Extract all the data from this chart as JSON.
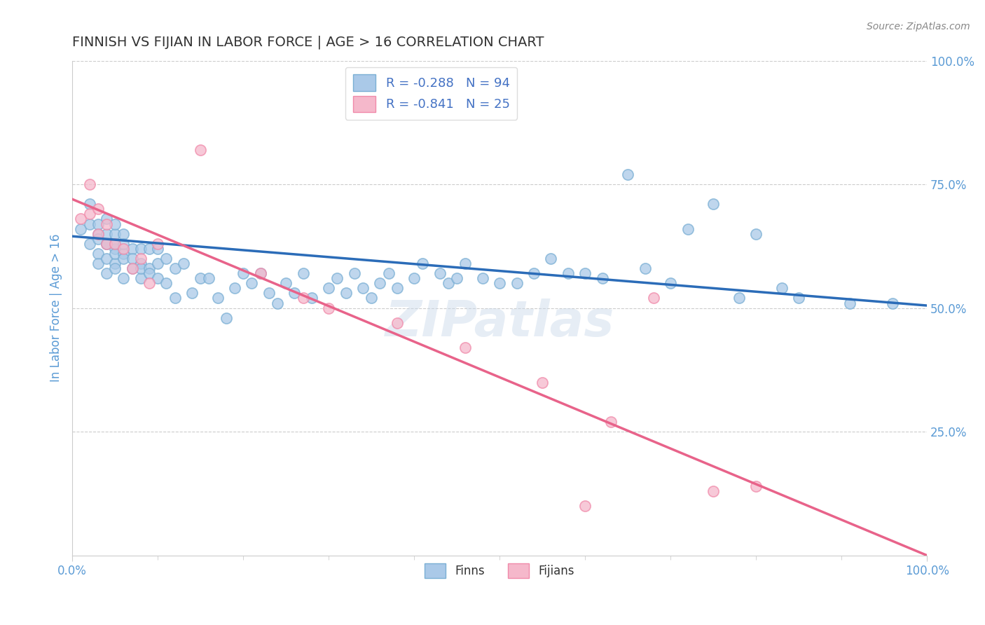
{
  "title": "FINNISH VS FIJIAN IN LABOR FORCE | AGE > 16 CORRELATION CHART",
  "source_text": "Source: ZipAtlas.com",
  "ylabel": "In Labor Force | Age > 16",
  "xlim": [
    0.0,
    1.0
  ],
  "ylim": [
    0.0,
    1.0
  ],
  "x_ticks": [
    0.0,
    1.0
  ],
  "x_tick_labels": [
    "0.0%",
    "100.0%"
  ],
  "y_ticks": [
    0.25,
    0.5,
    0.75,
    1.0
  ],
  "y_tick_labels": [
    "25.0%",
    "50.0%",
    "75.0%",
    "100.0%"
  ],
  "watermark": "ZIPatlas",
  "finn_color": "#aac9e8",
  "fijian_color": "#f5b8cb",
  "finn_edge_color": "#7aafd4",
  "fijian_edge_color": "#f08aaa",
  "finn_line_color": "#2b6cb8",
  "fijian_line_color": "#e8638a",
  "legend_finn_label": "R = -0.288   N = 94",
  "legend_fijian_label": "R = -0.841   N = 25",
  "finns_label": "Finns",
  "fijians_label": "Fijians",
  "finn_scatter_x": [
    0.01,
    0.02,
    0.02,
    0.02,
    0.03,
    0.03,
    0.03,
    0.03,
    0.03,
    0.04,
    0.04,
    0.04,
    0.04,
    0.04,
    0.04,
    0.05,
    0.05,
    0.05,
    0.05,
    0.05,
    0.05,
    0.05,
    0.06,
    0.06,
    0.06,
    0.06,
    0.06,
    0.07,
    0.07,
    0.07,
    0.08,
    0.08,
    0.08,
    0.08,
    0.09,
    0.09,
    0.09,
    0.1,
    0.1,
    0.1,
    0.11,
    0.11,
    0.12,
    0.12,
    0.13,
    0.14,
    0.15,
    0.16,
    0.17,
    0.18,
    0.19,
    0.2,
    0.21,
    0.22,
    0.23,
    0.24,
    0.25,
    0.26,
    0.27,
    0.28,
    0.3,
    0.31,
    0.32,
    0.33,
    0.34,
    0.35,
    0.36,
    0.37,
    0.38,
    0.4,
    0.41,
    0.43,
    0.44,
    0.45,
    0.46,
    0.48,
    0.5,
    0.52,
    0.54,
    0.56,
    0.58,
    0.6,
    0.62,
    0.65,
    0.67,
    0.7,
    0.72,
    0.75,
    0.78,
    0.8,
    0.83,
    0.85,
    0.91,
    0.96
  ],
  "finn_scatter_y": [
    0.66,
    0.67,
    0.63,
    0.71,
    0.65,
    0.67,
    0.64,
    0.61,
    0.59,
    0.65,
    0.63,
    0.68,
    0.6,
    0.57,
    0.63,
    0.65,
    0.62,
    0.59,
    0.67,
    0.63,
    0.58,
    0.61,
    0.65,
    0.61,
    0.63,
    0.56,
    0.6,
    0.62,
    0.58,
    0.6,
    0.59,
    0.62,
    0.56,
    0.58,
    0.58,
    0.62,
    0.57,
    0.62,
    0.56,
    0.59,
    0.6,
    0.55,
    0.58,
    0.52,
    0.59,
    0.53,
    0.56,
    0.56,
    0.52,
    0.48,
    0.54,
    0.57,
    0.55,
    0.57,
    0.53,
    0.51,
    0.55,
    0.53,
    0.57,
    0.52,
    0.54,
    0.56,
    0.53,
    0.57,
    0.54,
    0.52,
    0.55,
    0.57,
    0.54,
    0.56,
    0.59,
    0.57,
    0.55,
    0.56,
    0.59,
    0.56,
    0.55,
    0.55,
    0.57,
    0.6,
    0.57,
    0.57,
    0.56,
    0.77,
    0.58,
    0.55,
    0.66,
    0.71,
    0.52,
    0.65,
    0.54,
    0.52,
    0.51,
    0.51
  ],
  "fijian_scatter_x": [
    0.01,
    0.02,
    0.02,
    0.03,
    0.03,
    0.04,
    0.04,
    0.05,
    0.06,
    0.07,
    0.08,
    0.09,
    0.1,
    0.15,
    0.22,
    0.27,
    0.3,
    0.38,
    0.46,
    0.55,
    0.6,
    0.63,
    0.68,
    0.75,
    0.8
  ],
  "fijian_scatter_y": [
    0.68,
    0.75,
    0.69,
    0.7,
    0.65,
    0.67,
    0.63,
    0.63,
    0.62,
    0.58,
    0.6,
    0.55,
    0.63,
    0.82,
    0.57,
    0.52,
    0.5,
    0.47,
    0.42,
    0.35,
    0.1,
    0.27,
    0.52,
    0.13,
    0.14
  ],
  "finn_trend_x": [
    0.0,
    1.0
  ],
  "finn_trend_y": [
    0.645,
    0.505
  ],
  "fijian_trend_x": [
    0.0,
    1.0
  ],
  "fijian_trend_y": [
    0.72,
    0.0
  ],
  "background_color": "#ffffff",
  "grid_color": "#cccccc",
  "title_color": "#333333",
  "axis_label_color": "#5b9bd5",
  "tick_label_color": "#5b9bd5",
  "legend_text_color": "#333333",
  "legend_value_color": "#4472c4"
}
